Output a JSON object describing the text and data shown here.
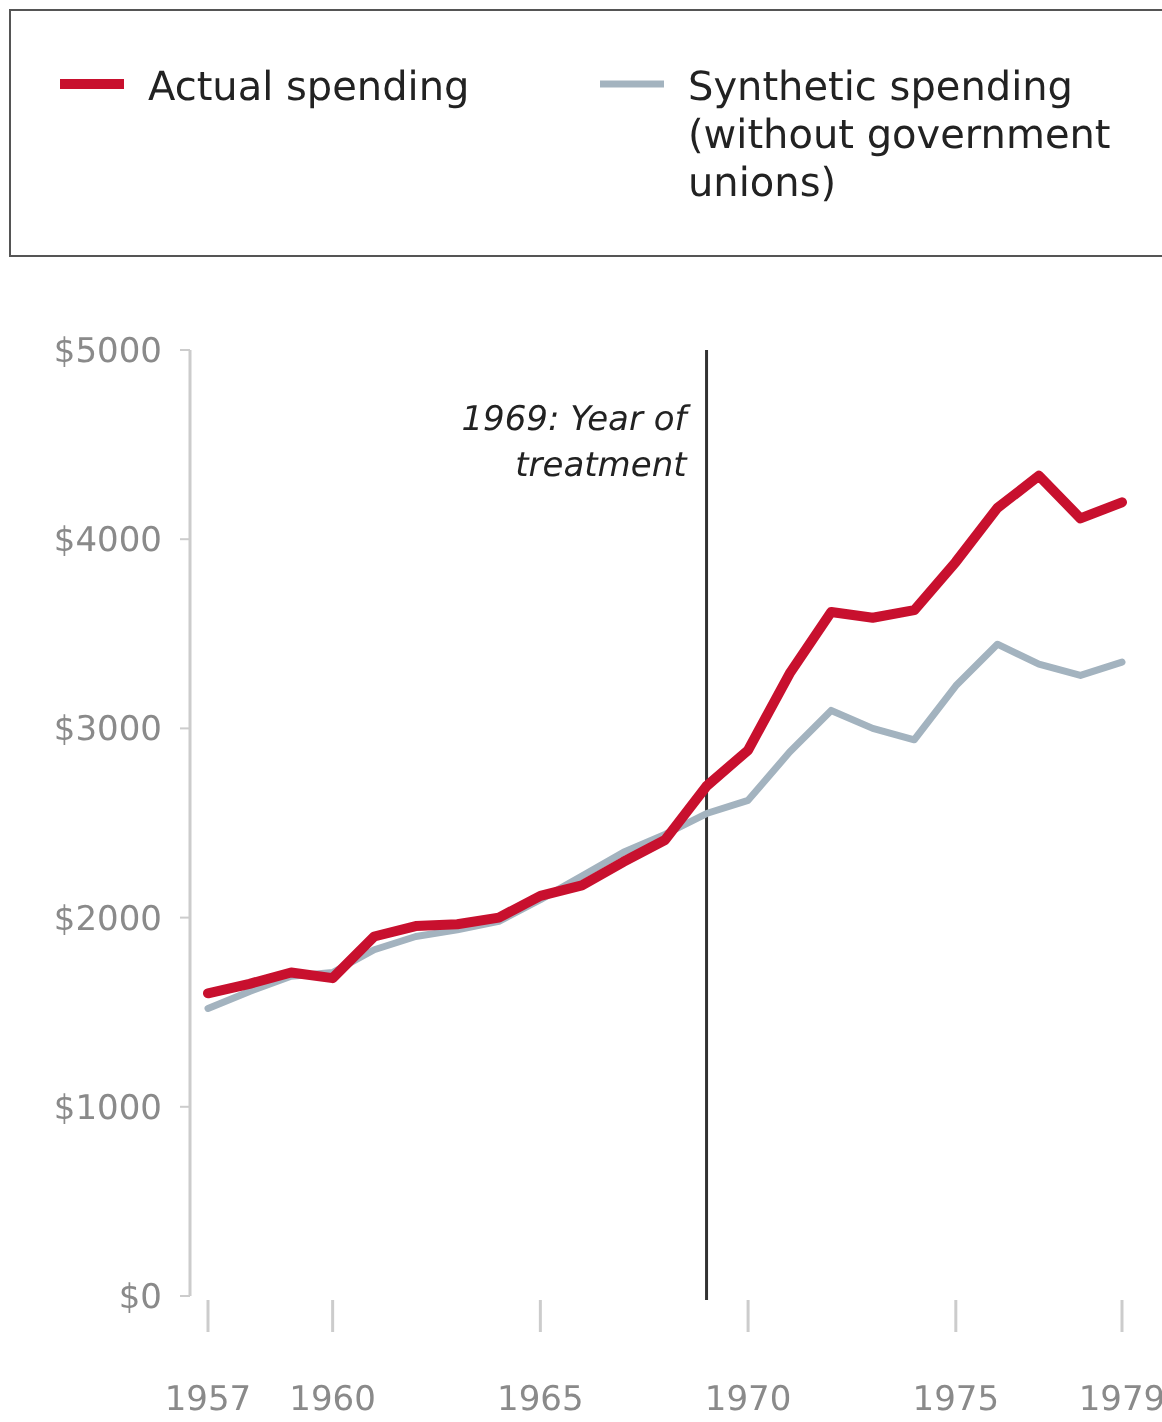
{
  "chart_data": {
    "type": "line",
    "x": [
      1957,
      1958,
      1959,
      1960,
      1961,
      1962,
      1963,
      1964,
      1965,
      1966,
      1967,
      1968,
      1969,
      1970,
      1971,
      1972,
      1973,
      1974,
      1975,
      1976,
      1977,
      1978,
      1979
    ],
    "series": [
      {
        "name": "Actual spending",
        "color": "#c8102e",
        "values": [
          1600,
          1650,
          1710,
          1680,
          1900,
          1955,
          1965,
          2000,
          2115,
          2170,
          2295,
          2410,
          2695,
          2885,
          3290,
          3615,
          3585,
          3625,
          3880,
          4165,
          4335,
          4110,
          4195
        ]
      },
      {
        "name": "Synthetic spending (without government unions)",
        "color": "#a3b3bf",
        "values": [
          1520,
          1610,
          1690,
          1710,
          1830,
          1900,
          1935,
          1980,
          2095,
          2220,
          2345,
          2440,
          2550,
          2620,
          2875,
          3095,
          3000,
          2940,
          3225,
          3445,
          3340,
          3280,
          3350
        ]
      }
    ],
    "xlim": [
      1957,
      1979
    ],
    "xticks": [
      1957,
      1960,
      1965,
      1970,
      1975,
      1979
    ],
    "ylim": [
      0,
      5000
    ],
    "yticks": [
      {
        "value": 0,
        "label": "$0"
      },
      {
        "value": 1000,
        "label": "$1000"
      },
      {
        "value": 2000,
        "label": "$2000"
      },
      {
        "value": 3000,
        "label": "$3000"
      },
      {
        "value": 4000,
        "label": "$4000"
      },
      {
        "value": 5000,
        "label": "$5000"
      }
    ],
    "ref_lines": [
      {
        "axis": "x",
        "value": 1969,
        "label": "1969: Year of treatment",
        "color": "#333333"
      }
    ],
    "legend": "top",
    "grid": false,
    "marker": "none",
    "line_style": "solid"
  }
}
